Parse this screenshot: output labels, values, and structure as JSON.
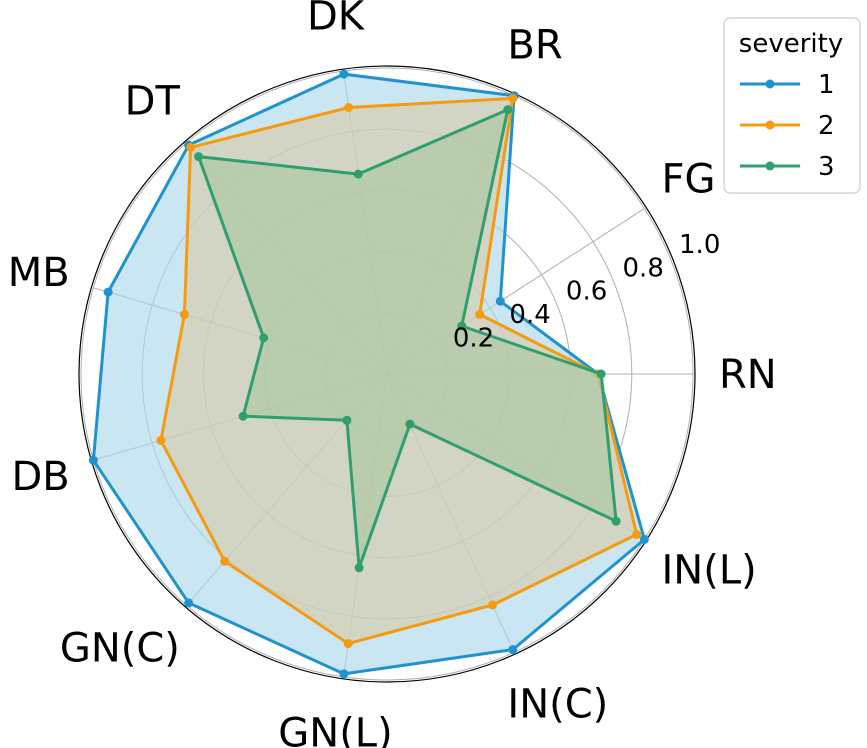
{
  "chart_data": {
    "type": "radar",
    "title": "",
    "categories": [
      "RN",
      "FG",
      "BR",
      "DK",
      "DT",
      "MB",
      "DB",
      "GN(C)",
      "GN(L)",
      "IN(C)",
      "IN(L)"
    ],
    "rlim": [
      0,
      1.0
    ],
    "rticks": [
      "0.2",
      "0.4",
      "0.6",
      "0.8",
      "1.0"
    ],
    "rtick_values": [
      0.2,
      0.4,
      0.6,
      0.8,
      1.0
    ],
    "grid": true,
    "legend": {
      "title": "severity",
      "placement": "top-right"
    },
    "series": [
      {
        "name": "1",
        "color": "#1f93d0",
        "fill": "#aad6ec",
        "values": [
          0.69,
          0.44,
          1.0,
          0.99,
          0.99,
          0.95,
          1.0,
          0.99,
          0.99,
          0.99,
          1.0
        ]
      },
      {
        "name": "2",
        "color": "#f59b0e",
        "fill": "#d8c9a7",
        "values": [
          0.69,
          0.36,
          0.99,
          0.88,
          0.98,
          0.69,
          0.77,
          0.81,
          0.89,
          0.83,
          0.97
        ]
      },
      {
        "name": "3",
        "color": "#2f9f6f",
        "fill": "#a9c6a0",
        "values": [
          0.7,
          0.29,
          0.95,
          0.66,
          0.94,
          0.42,
          0.49,
          0.2,
          0.64,
          0.18,
          0.89
        ]
      }
    ]
  }
}
